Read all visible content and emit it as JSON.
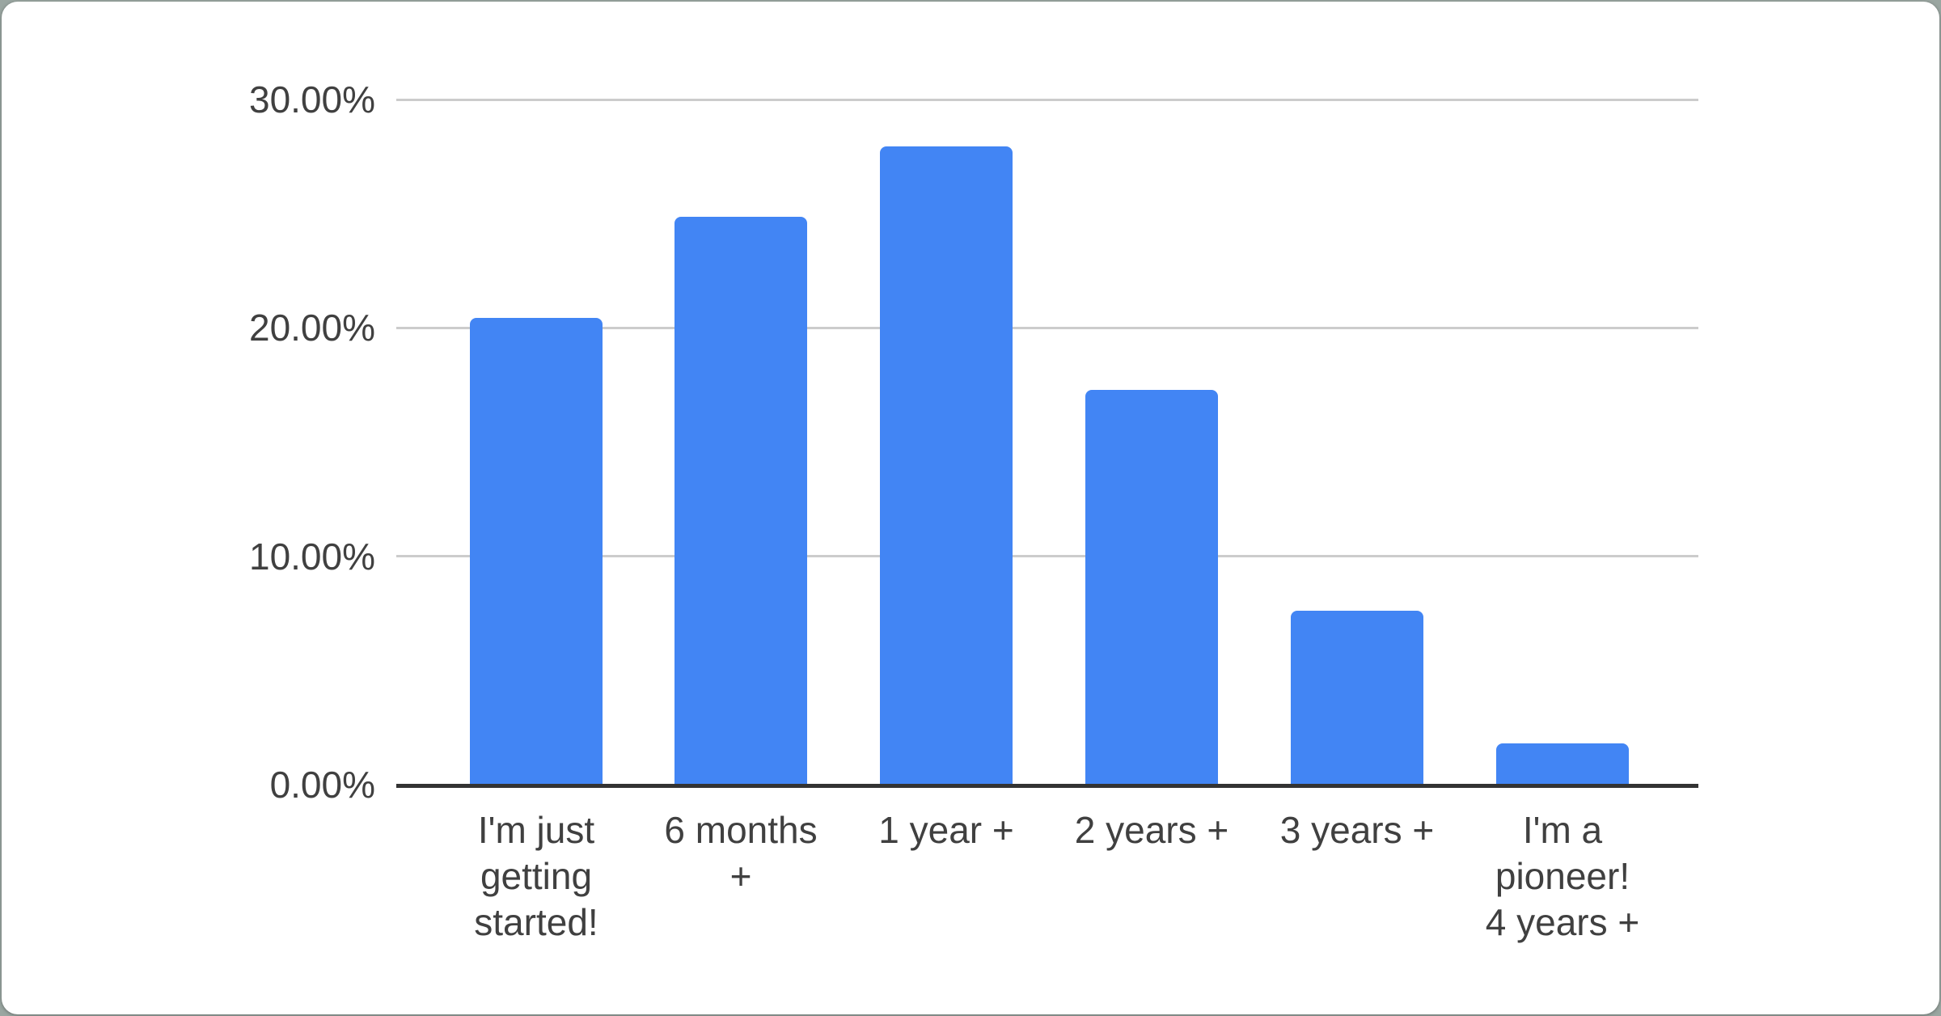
{
  "chart_data": {
    "type": "bar",
    "title": "",
    "xlabel": "",
    "ylabel": "",
    "categories": [
      "I'm just getting started!",
      "6 months +",
      "1 year +",
      "2 years +",
      "3 years +",
      "I'm a pioneer! 4 years +"
    ],
    "category_label_lines": [
      [
        "I'm just",
        "getting",
        "started!"
      ],
      [
        "6 months",
        "+"
      ],
      [
        "1 year +"
      ],
      [
        "2 years +"
      ],
      [
        "3 years +"
      ],
      [
        "I'm a",
        "pioneer!",
        "4 years +"
      ]
    ],
    "values": [
      20.45,
      24.85,
      27.95,
      17.3,
      7.6,
      1.8
    ],
    "unit": "percent",
    "ylim": [
      0,
      30
    ],
    "y_ticks": [
      {
        "value": 0,
        "label": "0.00%"
      },
      {
        "value": 10,
        "label": "10.00%"
      },
      {
        "value": 20,
        "label": "20.00%"
      },
      {
        "value": 30,
        "label": "30.00%"
      }
    ],
    "grid": true,
    "legend": "none",
    "colors": {
      "bar": "#4285f4",
      "axis_line": "#333333",
      "gridline": "#cccccc",
      "label_text": "#404040",
      "card_background": "#ffffff",
      "page_background": "#9aa6a1"
    }
  }
}
